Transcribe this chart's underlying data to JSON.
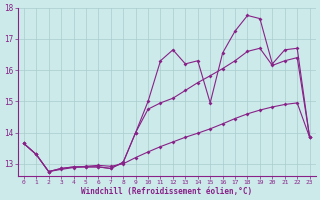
{
  "xlabel": "Windchill (Refroidissement éolien,°C)",
  "bg_color": "#cceaea",
  "grid_color": "#aacccc",
  "line_color": "#882288",
  "xlim": [
    -0.5,
    23.5
  ],
  "ylim": [
    12.6,
    18.0
  ],
  "yticks": [
    13,
    14,
    15,
    16,
    17,
    18
  ],
  "xticks": [
    0,
    1,
    2,
    3,
    4,
    5,
    6,
    7,
    8,
    9,
    10,
    11,
    12,
    13,
    14,
    15,
    16,
    17,
    18,
    19,
    20,
    21,
    22,
    23
  ],
  "series1_x": [
    0,
    1,
    2,
    3,
    4,
    5,
    6,
    7,
    8,
    9,
    10,
    11,
    12,
    13,
    14,
    15,
    16,
    17,
    18,
    19,
    20,
    21,
    22,
    23
  ],
  "series1_y": [
    13.65,
    13.3,
    12.75,
    12.85,
    12.9,
    12.9,
    12.9,
    12.85,
    13.05,
    14.0,
    15.0,
    16.3,
    16.65,
    16.2,
    16.3,
    14.95,
    16.55,
    17.25,
    17.75,
    17.65,
    16.2,
    16.65,
    16.7,
    13.85
  ],
  "series2_x": [
    0,
    1,
    2,
    3,
    4,
    5,
    6,
    7,
    8,
    9,
    10,
    11,
    12,
    13,
    14,
    15,
    16,
    17,
    18,
    19,
    20,
    21,
    22,
    23
  ],
  "series2_y": [
    13.65,
    13.3,
    12.75,
    12.85,
    12.9,
    12.9,
    12.9,
    12.85,
    13.05,
    14.0,
    14.75,
    14.95,
    15.1,
    15.35,
    15.6,
    15.82,
    16.05,
    16.3,
    16.6,
    16.7,
    16.15,
    16.3,
    16.4,
    13.85
  ],
  "series3_x": [
    0,
    1,
    2,
    3,
    4,
    5,
    6,
    7,
    8,
    9,
    10,
    11,
    12,
    13,
    14,
    15,
    16,
    17,
    18,
    19,
    20,
    21,
    22,
    23
  ],
  "series3_y": [
    13.65,
    13.3,
    12.75,
    12.82,
    12.88,
    12.92,
    12.95,
    12.92,
    13.0,
    13.2,
    13.38,
    13.55,
    13.7,
    13.85,
    13.98,
    14.12,
    14.28,
    14.45,
    14.6,
    14.72,
    14.82,
    14.9,
    14.95,
    13.85
  ]
}
